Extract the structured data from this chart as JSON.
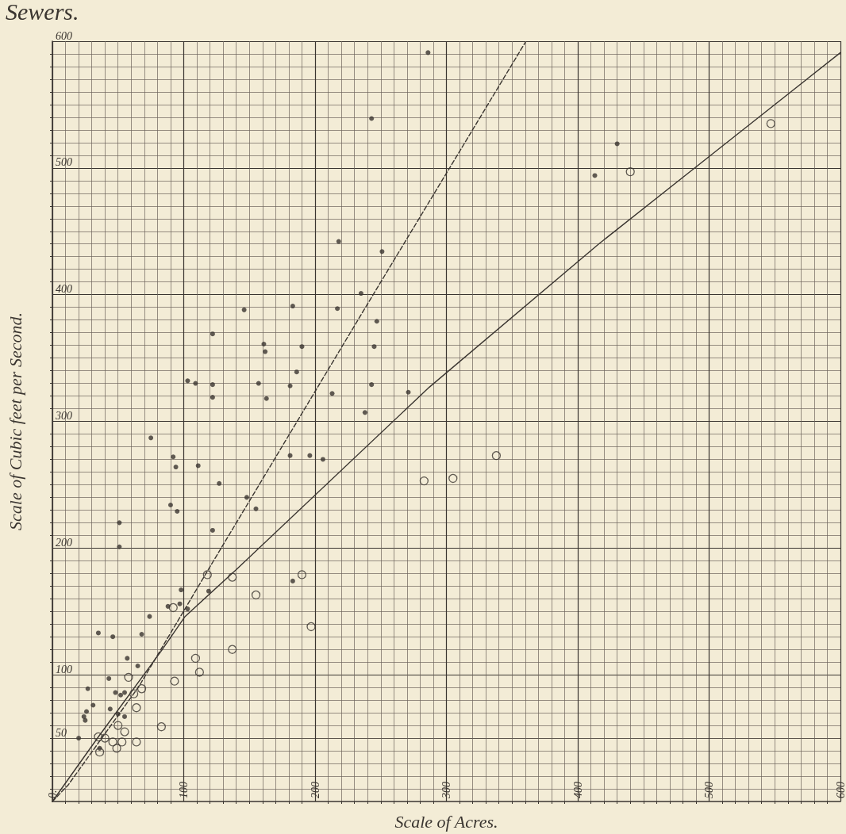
{
  "chart_data": {
    "type": "scatter",
    "title": "Sewers.",
    "xlabel": "Scale of Acres.",
    "ylabel": "Scale of Cubic feet per Second.",
    "xlim": [
      0,
      600
    ],
    "ylim": [
      0,
      600
    ],
    "xticks": [
      {
        "value": 0,
        "label": "0."
      },
      100,
      200,
      300,
      400,
      500,
      600
    ],
    "yticks": [
      50,
      100,
      200,
      300,
      400,
      500,
      600
    ],
    "grid": true,
    "marker": "circle",
    "series": [
      {
        "color": "#3a3530",
        "x": [
          286,
          243,
          218,
          251,
          235,
          183,
          146,
          217,
          247,
          122,
          161,
          162,
          190,
          245,
          186,
          103,
          109,
          122,
          157,
          181,
          243,
          122,
          163,
          213,
          271,
          238,
          75,
          92,
          94,
          111,
          181,
          196,
          206,
          127,
          148,
          155,
          90,
          95,
          122,
          51,
          51,
          430,
          413,
          183,
          98,
          119,
          88,
          103,
          97,
          74,
          35,
          46,
          68,
          57,
          65,
          43,
          27,
          48,
          52,
          55,
          31,
          44,
          26,
          24,
          55,
          50,
          25,
          20,
          36
        ],
        "values": [
          591,
          539,
          442,
          434,
          401,
          391,
          388,
          389,
          379,
          369,
          361,
          355,
          359,
          359,
          339,
          332,
          330,
          329,
          330,
          328,
          329,
          319,
          318,
          322,
          323,
          307,
          287,
          272,
          264,
          265,
          273,
          273,
          270,
          251,
          240,
          231,
          234,
          229,
          214,
          220,
          201,
          519,
          494,
          174,
          167,
          166,
          154,
          152,
          156,
          146,
          133,
          130,
          132,
          113,
          107,
          97,
          89,
          86,
          84,
          86,
          76,
          73,
          71,
          67,
          67,
          69,
          64,
          50,
          42
        ]
      },
      {
        "color": "#3a3530",
        "x": [
          283,
          338,
          305,
          547,
          440,
          118,
          137,
          190,
          155,
          92,
          197,
          137,
          109,
          112,
          93,
          58,
          68,
          62,
          64,
          50,
          55,
          83,
          35,
          40,
          46,
          53,
          64,
          49,
          36
        ],
        "values": [
          253,
          273,
          255,
          535,
          497,
          179,
          177,
          179,
          163,
          153,
          138,
          120,
          113,
          102,
          95,
          98,
          89,
          85,
          74,
          60,
          55,
          59,
          51,
          50,
          47,
          47,
          47,
          42,
          39
        ]
      },
      {
        "type": "line",
        "color": "#3a3530",
        "line_style": "dashed",
        "marker": "none",
        "x": [
          0,
          12,
          66,
          121,
          239,
          310,
          360
        ],
        "values": [
          0,
          13,
          91,
          187,
          391,
          513,
          599
        ]
      },
      {
        "type": "line",
        "color": "#3a3530",
        "line_style": "solid",
        "marker": "none",
        "x": [
          0,
          35,
          83,
          101,
          140,
          287,
          416,
          500,
          600
        ],
        "values": [
          0,
          51,
          119,
          146,
          183,
          327,
          440,
          509,
          591
        ]
      }
    ]
  }
}
